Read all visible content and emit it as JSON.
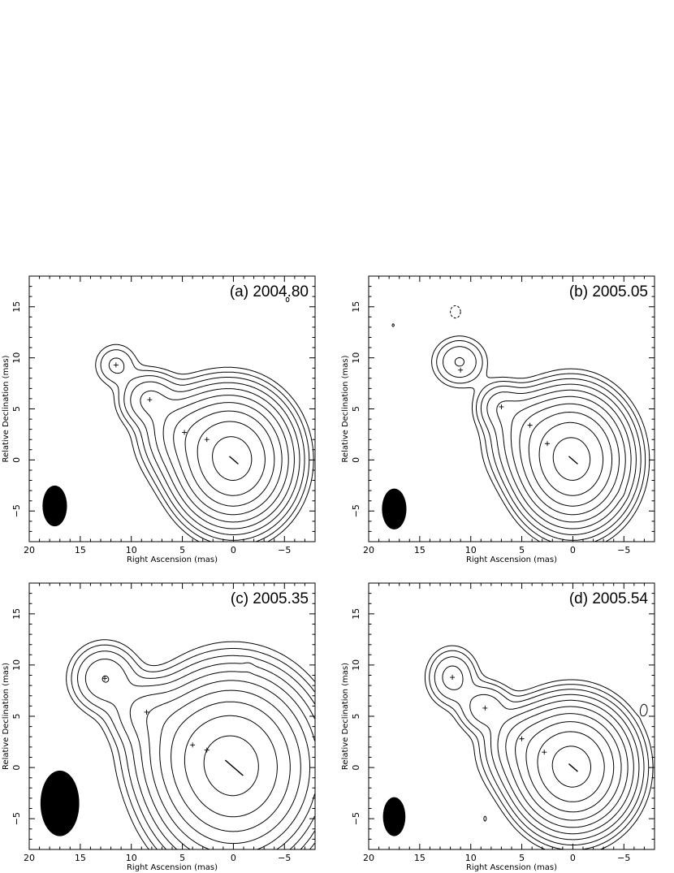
{
  "chart_data": [
    {
      "type": "contour",
      "title": "(a) 2004.80",
      "xlabel": "Right Ascension  (mas)",
      "ylabel": "Relative Declination  (mas)",
      "xlim": [
        20,
        -8
      ],
      "ylim": [
        -8,
        18
      ],
      "xticks": [
        "20",
        "15",
        "10",
        "5",
        "0",
        "−5"
      ],
      "yticks": [
        "−5",
        "0",
        "5",
        "10",
        "15"
      ],
      "core": {
        "x": 0,
        "y": 0
      },
      "components": [
        {
          "x": 11.5,
          "y": 9.3
        },
        {
          "x": 8.2,
          "y": 5.9
        },
        {
          "x": 4.8,
          "y": 2.7
        },
        {
          "x": 2.6,
          "y": 2.0
        }
      ],
      "beam": {
        "x": 17.5,
        "y": -4.5,
        "major_mas": 4.0,
        "minor_mas": 2.4
      },
      "contours": {
        "levels": 12,
        "nodes": [
          {
            "x": 0,
            "y": 0,
            "sx": 2.3,
            "sy": 2.6,
            "w": 1.0
          },
          {
            "x": 2.5,
            "y": 2.0,
            "sx": 2.6,
            "sy": 2.3,
            "w": 0.12
          },
          {
            "x": 4.8,
            "y": 2.7,
            "sx": 1.8,
            "sy": 1.6,
            "w": 0.05
          },
          {
            "x": 8.2,
            "y": 5.9,
            "sx": 1.5,
            "sy": 1.4,
            "w": 0.04
          },
          {
            "x": 11.5,
            "y": 9.3,
            "sx": 1.2,
            "sy": 1.2,
            "w": 0.012
          },
          {
            "x": 6.5,
            "y": 4.3,
            "sx": 1.2,
            "sy": 1.2,
            "w": 0.006
          },
          {
            "x": -5.3,
            "y": 15.7,
            "sx": 0.2,
            "sy": 0.3,
            "w": 0.004
          }
        ]
      }
    },
    {
      "type": "contour",
      "title": "(b) 2005.05",
      "xlabel": "Right Ascension  (mas)",
      "ylabel": "Relative Declination  (mas)",
      "xlim": [
        20,
        -8
      ],
      "ylim": [
        -8,
        18
      ],
      "xticks": [
        "20",
        "15",
        "10",
        "5",
        "0",
        "−5"
      ],
      "yticks": [
        "−5",
        "0",
        "5",
        "10",
        "15"
      ],
      "core": {
        "x": 0,
        "y": 0
      },
      "components": [
        {
          "x": 11.0,
          "y": 8.8
        },
        {
          "x": 7.0,
          "y": 5.2
        },
        {
          "x": 4.2,
          "y": 3.4
        },
        {
          "x": 2.5,
          "y": 1.6
        }
      ],
      "beam": {
        "x": 17.5,
        "y": -4.8,
        "major_mas": 4.0,
        "minor_mas": 2.4
      },
      "contours": {
        "levels": 12,
        "nodes": [
          {
            "x": 0,
            "y": 0,
            "sx": 2.2,
            "sy": 2.6,
            "w": 1.0
          },
          {
            "x": 2.5,
            "y": 1.6,
            "sx": 2.4,
            "sy": 2.2,
            "w": 0.1
          },
          {
            "x": 4.2,
            "y": 3.4,
            "sx": 1.6,
            "sy": 1.6,
            "w": 0.04
          },
          {
            "x": 7.0,
            "y": 5.2,
            "sx": 1.3,
            "sy": 1.3,
            "w": 0.03
          },
          {
            "x": 11.1,
            "y": 9.6,
            "sx": 1.4,
            "sy": 1.3,
            "w": 0.02
          },
          {
            "x": -4.8,
            "y": -3.3,
            "sx": 0.35,
            "sy": 0.35,
            "w": 0.004
          },
          {
            "x": 17.6,
            "y": 13.2,
            "sx": 0.15,
            "sy": 0.2,
            "w": 0.004
          }
        ],
        "negative": [
          {
            "x": 11.5,
            "y": 14.5,
            "rx": 0.5,
            "ry": 0.6
          }
        ]
      }
    },
    {
      "type": "contour",
      "title": "(c) 2005.35",
      "xlabel": "Right Ascension  (mas)",
      "ylabel": "Relative Declination  (mas)",
      "xlim": [
        20,
        -8
      ],
      "ylim": [
        -8,
        18
      ],
      "xticks": [
        "20",
        "15",
        "10",
        "5",
        "0",
        "−5"
      ],
      "yticks": [
        "−5",
        "0",
        "5",
        "10",
        "15"
      ],
      "core": {
        "x": 0,
        "y": 0
      },
      "components": [
        {
          "x": 12.6,
          "y": 8.7
        },
        {
          "x": 8.5,
          "y": 5.4
        },
        {
          "x": 4.0,
          "y": 2.2
        },
        {
          "x": 2.6,
          "y": 1.7
        }
      ],
      "beam": {
        "x": 17.0,
        "y": -3.5,
        "major_mas": 6.4,
        "minor_mas": 3.8
      },
      "contours": {
        "levels": 13,
        "nodes": [
          {
            "x": 0,
            "y": 0,
            "sx": 3.2,
            "sy": 3.6,
            "w": 1.0
          },
          {
            "x": 3.0,
            "y": 2.0,
            "sx": 3.0,
            "sy": 2.6,
            "w": 0.12
          },
          {
            "x": 8.5,
            "y": 5.4,
            "sx": 1.9,
            "sy": 1.7,
            "w": 0.04
          },
          {
            "x": 12.6,
            "y": 8.7,
            "sx": 1.7,
            "sy": 1.7,
            "w": 0.035
          },
          {
            "x": 6.0,
            "y": 4.0,
            "sx": 1.5,
            "sy": 1.5,
            "w": 0.01
          },
          {
            "x": -1.5,
            "y": 9.8,
            "sx": 0.35,
            "sy": 0.5,
            "w": 0.004
          }
        ]
      }
    },
    {
      "type": "contour",
      "title": "(d) 2005.54",
      "xlabel": "Right Ascension  (mas)",
      "ylabel": "Relative Declination  (mas)",
      "xlim": [
        20,
        -8
      ],
      "ylim": [
        -8,
        18
      ],
      "xticks": [
        "20",
        "15",
        "10",
        "5",
        "0",
        "−5"
      ],
      "yticks": [
        "−5",
        "0",
        "5",
        "10",
        "15"
      ],
      "core": {
        "x": 0,
        "y": 0
      },
      "components": [
        {
          "x": 11.8,
          "y": 8.8
        },
        {
          "x": 8.6,
          "y": 5.8
        },
        {
          "x": 5.0,
          "y": 2.8
        },
        {
          "x": 2.8,
          "y": 1.5
        }
      ],
      "beam": {
        "x": 17.5,
        "y": -4.8,
        "major_mas": 3.8,
        "minor_mas": 2.2
      },
      "contours": {
        "levels": 12,
        "nodes": [
          {
            "x": 0,
            "y": 0,
            "sx": 2.3,
            "sy": 2.5,
            "w": 1.0
          },
          {
            "x": 2.8,
            "y": 1.5,
            "sx": 2.5,
            "sy": 2.1,
            "w": 0.1
          },
          {
            "x": 5.0,
            "y": 2.8,
            "sx": 1.6,
            "sy": 1.5,
            "w": 0.04
          },
          {
            "x": 8.6,
            "y": 5.8,
            "sx": 1.4,
            "sy": 1.3,
            "w": 0.03
          },
          {
            "x": 11.8,
            "y": 8.8,
            "sx": 1.3,
            "sy": 1.5,
            "w": 0.025
          },
          {
            "x": -7.0,
            "y": 5.7,
            "sx": 0.3,
            "sy": 0.5,
            "w": 0.004
          },
          {
            "x": 8.6,
            "y": -5.0,
            "sx": 0.15,
            "sy": 0.3,
            "w": 0.004
          }
        ]
      }
    }
  ]
}
